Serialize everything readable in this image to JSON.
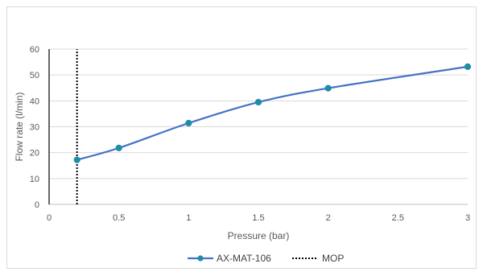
{
  "chart_data": {
    "type": "line",
    "xlabel": "Pressure (bar)",
    "ylabel": "Flow rate (l/min)",
    "xlim": [
      0,
      3
    ],
    "ylim": [
      0,
      60
    ],
    "x_ticks": [
      0,
      0.5,
      1,
      1.5,
      2,
      2.5,
      3
    ],
    "y_ticks": [
      0,
      10,
      20,
      30,
      40,
      50,
      60
    ],
    "x_tick_labels": [
      "0",
      "0.5",
      "1",
      "1.5",
      "2",
      "2.5",
      "3"
    ],
    "y_tick_labels": [
      "0",
      "10",
      "20",
      "30",
      "40",
      "50",
      "60"
    ],
    "grid": "horizontal",
    "legend_position": "bottom",
    "series": [
      {
        "name": "AX-MAT-106",
        "color": "#4472C4",
        "marker_color": "#1F8CA8",
        "x": [
          0.2,
          0.5,
          1,
          1.5,
          2,
          3
        ],
        "y": [
          17.2,
          21.8,
          31.4,
          39.5,
          44.9,
          53.2
        ]
      },
      {
        "name": "MOP",
        "color": "#000000",
        "style": "dotted",
        "x": [
          0.2,
          0.2
        ],
        "y": [
          0,
          60
        ]
      }
    ]
  }
}
